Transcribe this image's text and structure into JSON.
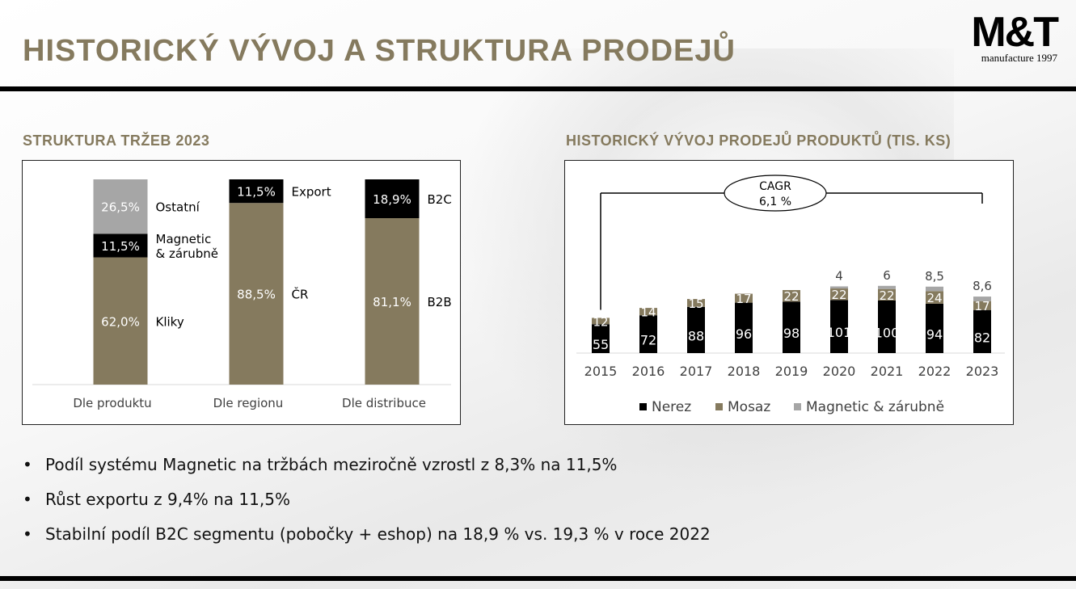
{
  "header": {
    "title": "HISTORICKÝ VÝVOJ A STRUKTURA PRODEJŮ",
    "logo_main": "M&T",
    "logo_sub": "manufacture 1997"
  },
  "left_section": {
    "title": "STRUKTURA TRŽEB 2023"
  },
  "right_section": {
    "title": "HISTORICKÝ VÝVOJ PRODEJŮ PRODUKTŮ (TIS. KS)"
  },
  "bullets": [
    "Podíl systému Magnetic na tržbách meziročně vzrostl z 8,3% na 11,5%",
    "Růst exportu z 9,4% na 11,5%",
    "Stabilní podíl B2C segmentu (pobočky + eshop) na 18,9 % vs. 19,3 % v roce 2022"
  ],
  "colors": {
    "gold": "#857a5e",
    "black": "#000000",
    "gray": "#a6a6a6"
  },
  "chart_data": [
    {
      "type": "bar",
      "stacked": true,
      "percent": true,
      "categories": [
        "Dle produktu",
        "Dle regionu",
        "Dle distribuce"
      ],
      "bars": [
        {
          "category": "Dle produktu",
          "segments": [
            {
              "label": "Kliky",
              "value": 62.0,
              "text": "62,0%",
              "color": "#857a5e"
            },
            {
              "label": "Magnetic\n& zárubně",
              "value": 11.5,
              "text": "11,5%",
              "color": "#000000"
            },
            {
              "label": "Ostatní",
              "value": 26.5,
              "text": "26,5%",
              "color": "#a6a6a6"
            }
          ]
        },
        {
          "category": "Dle regionu",
          "segments": [
            {
              "label": "ČR",
              "value": 88.5,
              "text": "88,5%",
              "color": "#857a5e"
            },
            {
              "label": "Export",
              "value": 11.5,
              "text": "11,5%",
              "color": "#000000"
            }
          ]
        },
        {
          "category": "Dle distribuce",
          "segments": [
            {
              "label": "B2B",
              "value": 81.1,
              "text": "81,1%",
              "color": "#857a5e"
            },
            {
              "label": "B2C",
              "value": 18.9,
              "text": "18,9%",
              "color": "#000000"
            }
          ]
        }
      ],
      "ylim": [
        0,
        100
      ]
    },
    {
      "type": "bar",
      "stacked": true,
      "categories": [
        "2015",
        "2016",
        "2017",
        "2018",
        "2019",
        "2020",
        "2021",
        "2022",
        "2023"
      ],
      "series": [
        {
          "name": "Nerez",
          "color": "#000000",
          "values": [
            55,
            72,
            88,
            96,
            98,
            101,
            100,
            94,
            82
          ]
        },
        {
          "name": "Mosaz",
          "color": "#857a5e",
          "values": [
            12,
            14,
            15,
            17,
            22,
            22,
            22,
            24,
            17
          ]
        },
        {
          "name": "Magnetic & zárubně",
          "color": "#a6a6a6",
          "values": [
            0,
            0,
            0,
            0,
            0,
            4,
            6,
            8.5,
            8.6
          ]
        }
      ],
      "value_labels": {
        "Nerez": [
          "55",
          "72",
          "88",
          "96",
          "98",
          "101",
          "100",
          "94",
          "82"
        ],
        "Mosaz": [
          "12",
          "14",
          "15",
          "17",
          "22",
          "22",
          "22",
          "24",
          "17"
        ],
        "Magnetic & zárubně": [
          "",
          "",
          "",
          "",
          "",
          "4",
          "6",
          "8,5",
          "8,6"
        ]
      },
      "annotation": {
        "label": "CAGR",
        "value": "6,1 %",
        "from": "2015",
        "to": "2023"
      },
      "legend": "bottom",
      "ylim": [
        0,
        140
      ]
    }
  ]
}
